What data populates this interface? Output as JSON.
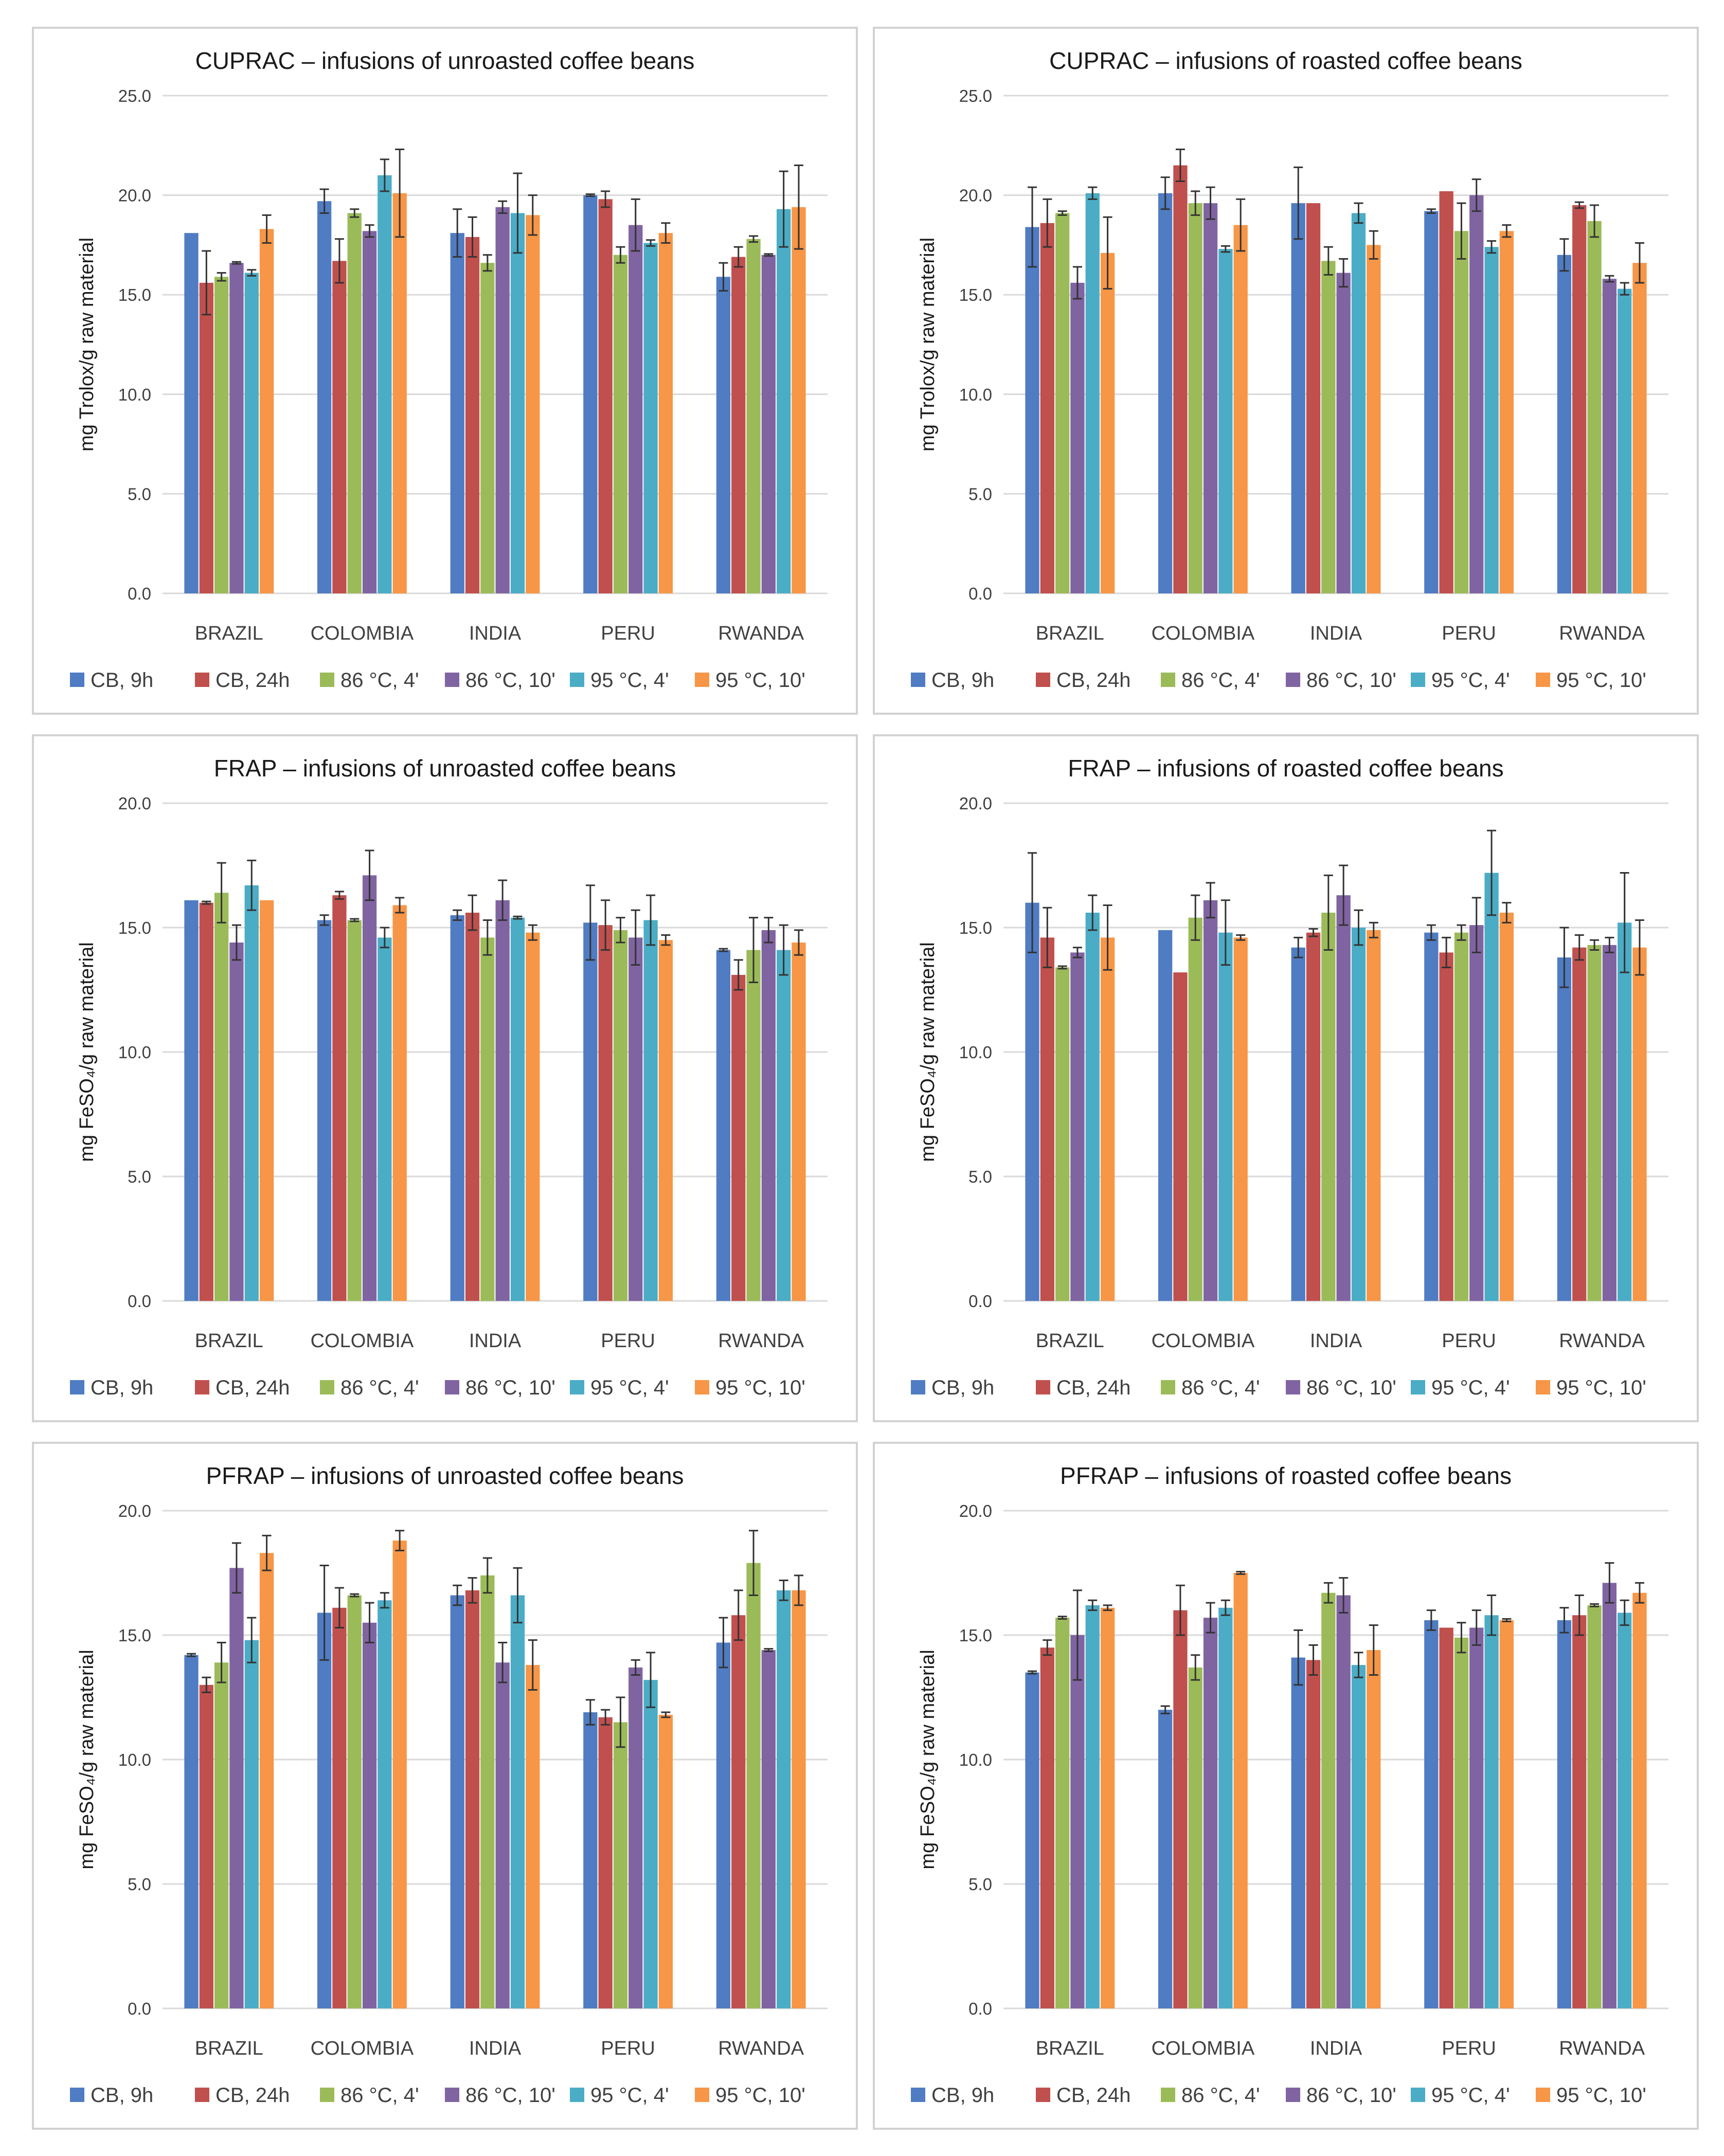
{
  "figure": {
    "series_colors": [
      "#4f7cc3",
      "#c0504d",
      "#9bbb59",
      "#8064a2",
      "#4bacc6",
      "#f79646"
    ]
  },
  "chart_data": [
    {
      "type": "bar",
      "title": "CUPRAC – infusions of unroasted coffee beans",
      "ylabel": "mg Trolox/g raw material",
      "ylim": [
        0,
        25
      ],
      "yticks": [
        "0.0",
        "5.0",
        "10.0",
        "15.0",
        "20.0",
        "25.0"
      ],
      "grid": true,
      "legend": "bottom",
      "categories": [
        "BRAZIL",
        "COLOMBIA",
        "INDIA",
        "PERU",
        "RWANDA"
      ],
      "series": [
        {
          "name": "CB, 9h",
          "values": [
            18.1,
            19.7,
            18.1,
            20.0,
            15.9
          ],
          "errors": [
            0.0,
            0.6,
            1.2,
            0.05,
            0.7
          ]
        },
        {
          "name": "CB, 24h",
          "values": [
            15.6,
            16.7,
            17.9,
            19.8,
            16.9
          ],
          "errors": [
            1.6,
            1.1,
            1.0,
            0.4,
            0.5
          ]
        },
        {
          "name": "86 °C, 4'",
          "values": [
            15.9,
            19.1,
            16.6,
            17.0,
            17.8
          ],
          "errors": [
            0.2,
            0.2,
            0.4,
            0.4,
            0.15
          ]
        },
        {
          "name": "86 °C, 10'",
          "values": [
            16.6,
            18.2,
            19.4,
            18.5,
            17.0
          ],
          "errors": [
            0.05,
            0.3,
            0.3,
            1.3,
            0.05
          ]
        },
        {
          "name": "95 °C, 4'",
          "values": [
            16.1,
            21.0,
            19.1,
            17.6,
            19.3
          ],
          "errors": [
            0.15,
            0.8,
            2.0,
            0.15,
            1.9
          ]
        },
        {
          "name": "95 °C, 10'",
          "values": [
            18.3,
            20.1,
            19.0,
            18.1,
            19.4
          ],
          "errors": [
            0.7,
            2.2,
            1.0,
            0.5,
            2.1
          ]
        }
      ]
    },
    {
      "type": "bar",
      "title": "CUPRAC – infusions of roasted coffee beans",
      "ylabel": "mg Trolox/g raw material",
      "ylim": [
        0,
        25
      ],
      "yticks": [
        "0.0",
        "5.0",
        "10.0",
        "15.0",
        "20.0",
        "25.0"
      ],
      "grid": true,
      "legend": "bottom",
      "categories": [
        "BRAZIL",
        "COLOMBIA",
        "INDIA",
        "PERU",
        "RWANDA"
      ],
      "series": [
        {
          "name": "CB, 9h",
          "values": [
            18.4,
            20.1,
            19.6,
            19.2,
            17.0
          ],
          "errors": [
            2.0,
            0.8,
            1.8,
            0.1,
            0.8
          ]
        },
        {
          "name": "CB, 24h",
          "values": [
            18.6,
            21.5,
            19.6,
            20.2,
            19.5
          ],
          "errors": [
            1.2,
            0.8,
            0.0,
            0.0,
            0.15
          ]
        },
        {
          "name": "86 °C, 4'",
          "values": [
            19.1,
            19.6,
            16.7,
            18.2,
            18.7
          ],
          "errors": [
            0.1,
            0.6,
            0.7,
            1.4,
            0.8
          ]
        },
        {
          "name": "86 °C, 10'",
          "values": [
            15.6,
            19.6,
            16.1,
            20.0,
            15.8
          ],
          "errors": [
            0.8,
            0.8,
            0.7,
            0.8,
            0.15
          ]
        },
        {
          "name": "95 °C, 4'",
          "values": [
            20.1,
            17.3,
            19.1,
            17.4,
            15.3
          ],
          "errors": [
            0.3,
            0.15,
            0.5,
            0.3,
            0.3
          ]
        },
        {
          "name": "95 °C, 10'",
          "values": [
            17.1,
            18.5,
            17.5,
            18.2,
            16.6
          ],
          "errors": [
            1.8,
            1.3,
            0.7,
            0.3,
            1.0
          ]
        }
      ]
    },
    {
      "type": "bar",
      "title": "FRAP – infusions of unroasted coffee beans",
      "ylabel": "mg FeSO₄/g raw material",
      "ylim": [
        0,
        20
      ],
      "yticks": [
        "0.0",
        "5.0",
        "10.0",
        "15.0",
        "20.0"
      ],
      "grid": true,
      "legend": "bottom",
      "categories": [
        "BRAZIL",
        "COLOMBIA",
        "INDIA",
        "PERU",
        "RWANDA"
      ],
      "series": [
        {
          "name": "CB, 9h",
          "values": [
            16.1,
            15.3,
            15.5,
            15.2,
            14.1
          ],
          "errors": [
            0.0,
            0.2,
            0.2,
            1.5,
            0.05
          ]
        },
        {
          "name": "CB, 24h",
          "values": [
            16.0,
            16.3,
            15.6,
            15.1,
            13.1
          ],
          "errors": [
            0.05,
            0.15,
            0.7,
            1.0,
            0.6
          ]
        },
        {
          "name": "86 °C, 4'",
          "values": [
            16.4,
            15.3,
            14.6,
            14.9,
            14.1
          ],
          "errors": [
            1.2,
            0.05,
            0.7,
            0.5,
            1.3
          ]
        },
        {
          "name": "86 °C, 10'",
          "values": [
            14.4,
            17.1,
            16.1,
            14.6,
            14.9
          ],
          "errors": [
            0.7,
            1.0,
            0.8,
            1.1,
            0.5
          ]
        },
        {
          "name": "95 °C, 4'",
          "values": [
            16.7,
            14.6,
            15.4,
            15.3,
            14.1
          ],
          "errors": [
            1.0,
            0.4,
            0.05,
            1.0,
            1.0
          ]
        },
        {
          "name": "95 °C, 10'",
          "values": [
            16.1,
            15.9,
            14.8,
            14.5,
            14.4
          ],
          "errors": [
            0.0,
            0.3,
            0.3,
            0.2,
            0.5
          ]
        }
      ]
    },
    {
      "type": "bar",
      "title": "FRAP – infusions of roasted coffee beans",
      "ylabel": "mg FeSO₄/g raw material",
      "ylim": [
        0,
        20
      ],
      "yticks": [
        "0.0",
        "5.0",
        "10.0",
        "15.0",
        "20.0"
      ],
      "grid": true,
      "legend": "bottom",
      "categories": [
        "BRAZIL",
        "COLOMBIA",
        "INDIA",
        "PERU",
        "RWANDA"
      ],
      "series": [
        {
          "name": "CB, 9h",
          "values": [
            16.0,
            14.9,
            14.2,
            14.8,
            13.8
          ],
          "errors": [
            2.0,
            0.0,
            0.4,
            0.3,
            1.2
          ]
        },
        {
          "name": "CB, 24h",
          "values": [
            14.6,
            13.2,
            14.8,
            14.0,
            14.2
          ],
          "errors": [
            1.2,
            0.0,
            0.15,
            0.6,
            0.5
          ]
        },
        {
          "name": "86 °C, 4'",
          "values": [
            13.4,
            15.4,
            15.6,
            14.8,
            14.3
          ],
          "errors": [
            0.05,
            0.9,
            1.5,
            0.3,
            0.2
          ]
        },
        {
          "name": "86 °C, 10'",
          "values": [
            14.0,
            16.1,
            16.3,
            15.1,
            14.3
          ],
          "errors": [
            0.2,
            0.7,
            1.2,
            1.1,
            0.3
          ]
        },
        {
          "name": "95 °C, 4'",
          "values": [
            15.6,
            14.8,
            15.0,
            17.2,
            15.2
          ],
          "errors": [
            0.7,
            1.3,
            0.7,
            1.7,
            2.0
          ]
        },
        {
          "name": "95 °C, 10'",
          "values": [
            14.6,
            14.6,
            14.9,
            15.6,
            14.2
          ],
          "errors": [
            1.3,
            0.1,
            0.3,
            0.4,
            1.1
          ]
        }
      ]
    },
    {
      "type": "bar",
      "title": "PFRAP – infusions of unroasted coffee beans",
      "ylabel": "mg FeSO₄/g raw material",
      "ylim": [
        0,
        20
      ],
      "yticks": [
        "0.0",
        "5.0",
        "10.0",
        "15.0",
        "20.0"
      ],
      "grid": true,
      "legend": "bottom",
      "categories": [
        "BRAZIL",
        "COLOMBIA",
        "INDIA",
        "PERU",
        "RWANDA"
      ],
      "series": [
        {
          "name": "CB, 9h",
          "values": [
            14.2,
            15.9,
            16.6,
            11.9,
            14.7
          ],
          "errors": [
            0.05,
            1.9,
            0.4,
            0.5,
            1.0
          ]
        },
        {
          "name": "CB, 24h",
          "values": [
            13.0,
            16.1,
            16.8,
            11.7,
            15.8
          ],
          "errors": [
            0.3,
            0.8,
            0.5,
            0.3,
            1.0
          ]
        },
        {
          "name": "86 °C, 4'",
          "values": [
            13.9,
            16.6,
            17.4,
            11.5,
            17.9
          ],
          "errors": [
            0.8,
            0.05,
            0.7,
            1.0,
            1.3
          ]
        },
        {
          "name": "86 °C, 10'",
          "values": [
            17.7,
            15.5,
            13.9,
            13.7,
            14.4
          ],
          "errors": [
            1.0,
            0.8,
            0.8,
            0.3,
            0.05
          ]
        },
        {
          "name": "95 °C, 4'",
          "values": [
            14.8,
            16.4,
            16.6,
            13.2,
            16.8
          ],
          "errors": [
            0.9,
            0.3,
            1.1,
            1.1,
            0.4
          ]
        },
        {
          "name": "95 °C, 10'",
          "values": [
            18.3,
            18.8,
            13.8,
            11.8,
            16.8
          ],
          "errors": [
            0.7,
            0.4,
            1.0,
            0.1,
            0.6
          ]
        }
      ]
    },
    {
      "type": "bar",
      "title": "PFRAP – infusions of roasted coffee beans",
      "ylabel": "mg FeSO₄/g raw material",
      "ylim": [
        0,
        20
      ],
      "yticks": [
        "0.0",
        "5.0",
        "10.0",
        "15.0",
        "20.0"
      ],
      "grid": true,
      "legend": "bottom",
      "categories": [
        "BRAZIL",
        "COLOMBIA",
        "INDIA",
        "PERU",
        "RWANDA"
      ],
      "series": [
        {
          "name": "CB, 9h",
          "values": [
            13.5,
            12.0,
            14.1,
            15.6,
            15.6
          ],
          "errors": [
            0.05,
            0.15,
            1.1,
            0.4,
            0.5
          ]
        },
        {
          "name": "CB, 24h",
          "values": [
            14.5,
            16.0,
            14.0,
            15.3,
            15.8
          ],
          "errors": [
            0.3,
            1.0,
            0.6,
            0.0,
            0.8
          ]
        },
        {
          "name": "86 °C, 4'",
          "values": [
            15.7,
            13.7,
            16.7,
            14.9,
            16.2
          ],
          "errors": [
            0.05,
            0.5,
            0.4,
            0.6,
            0.05
          ]
        },
        {
          "name": "86 °C, 10'",
          "values": [
            15.0,
            15.7,
            16.6,
            15.3,
            17.1
          ],
          "errors": [
            1.8,
            0.6,
            0.7,
            0.7,
            0.8
          ]
        },
        {
          "name": "95 °C, 4'",
          "values": [
            16.2,
            16.1,
            13.8,
            15.8,
            15.9
          ],
          "errors": [
            0.2,
            0.3,
            0.5,
            0.8,
            0.5
          ]
        },
        {
          "name": "95 °C, 10'",
          "values": [
            16.1,
            17.5,
            14.4,
            15.6,
            16.7
          ],
          "errors": [
            0.1,
            0.05,
            1.0,
            0.05,
            0.4
          ]
        }
      ]
    }
  ]
}
